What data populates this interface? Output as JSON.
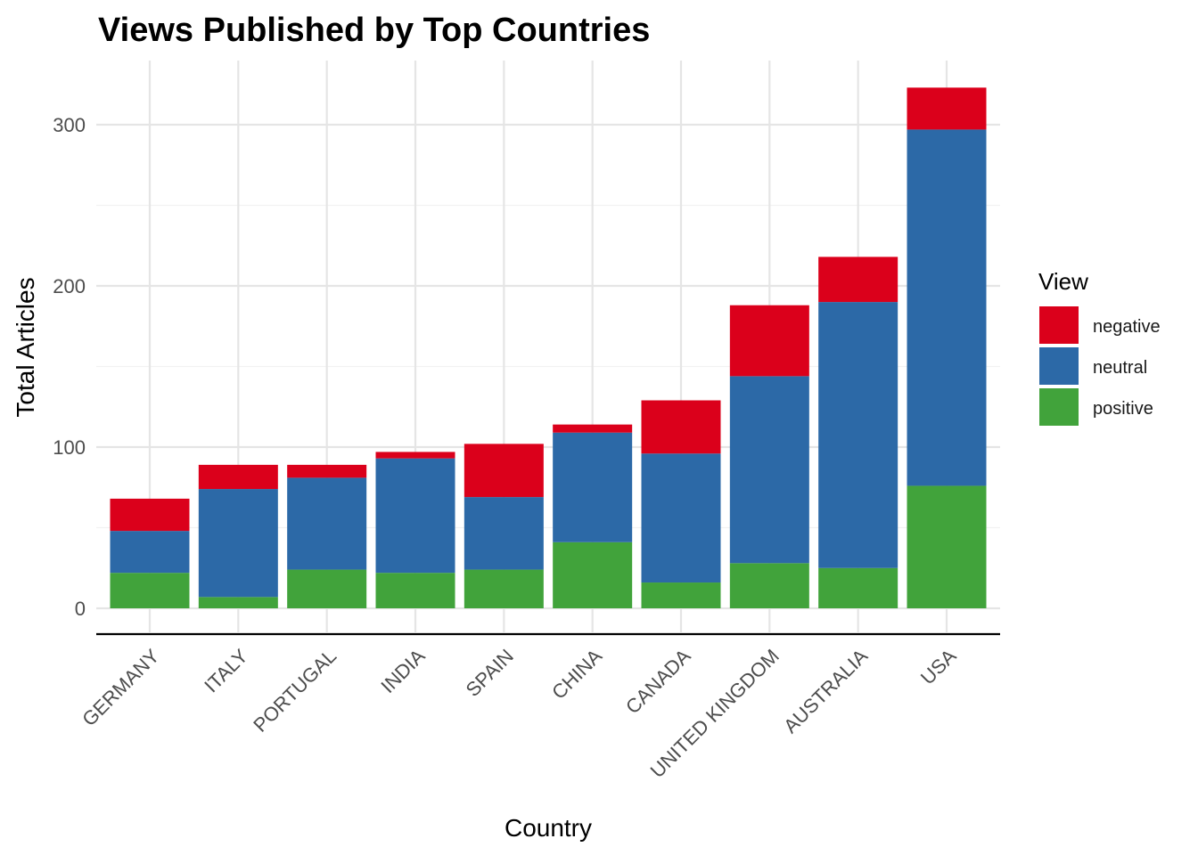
{
  "chart_data": {
    "type": "bar",
    "stacked": true,
    "title": "Views Published by Top Countries",
    "xlabel": "Country",
    "ylabel": "Total Articles",
    "ylim": [
      -15,
      340
    ],
    "yticks": [
      0,
      100,
      200,
      300
    ],
    "grid": true,
    "legend": {
      "title": "View",
      "position": "right"
    },
    "categories": [
      "GERMANY",
      "ITALY",
      "PORTUGAL",
      "INDIA",
      "SPAIN",
      "CHINA",
      "CANADA",
      "UNITED KINGDOM",
      "AUSTRALIA",
      "USA"
    ],
    "series": [
      {
        "name": "positive",
        "color": "#41a33b",
        "values": [
          22,
          7,
          24,
          22,
          24,
          41,
          16,
          28,
          25,
          76
        ]
      },
      {
        "name": "neutral",
        "color": "#2c69a7",
        "values": [
          26,
          67,
          57,
          71,
          45,
          68,
          80,
          116,
          165,
          221
        ]
      },
      {
        "name": "negative",
        "color": "#db001b",
        "values": [
          20,
          15,
          8,
          4,
          33,
          5,
          33,
          44,
          28,
          26
        ]
      }
    ],
    "legend_order": [
      "negative",
      "neutral",
      "positive"
    ]
  }
}
